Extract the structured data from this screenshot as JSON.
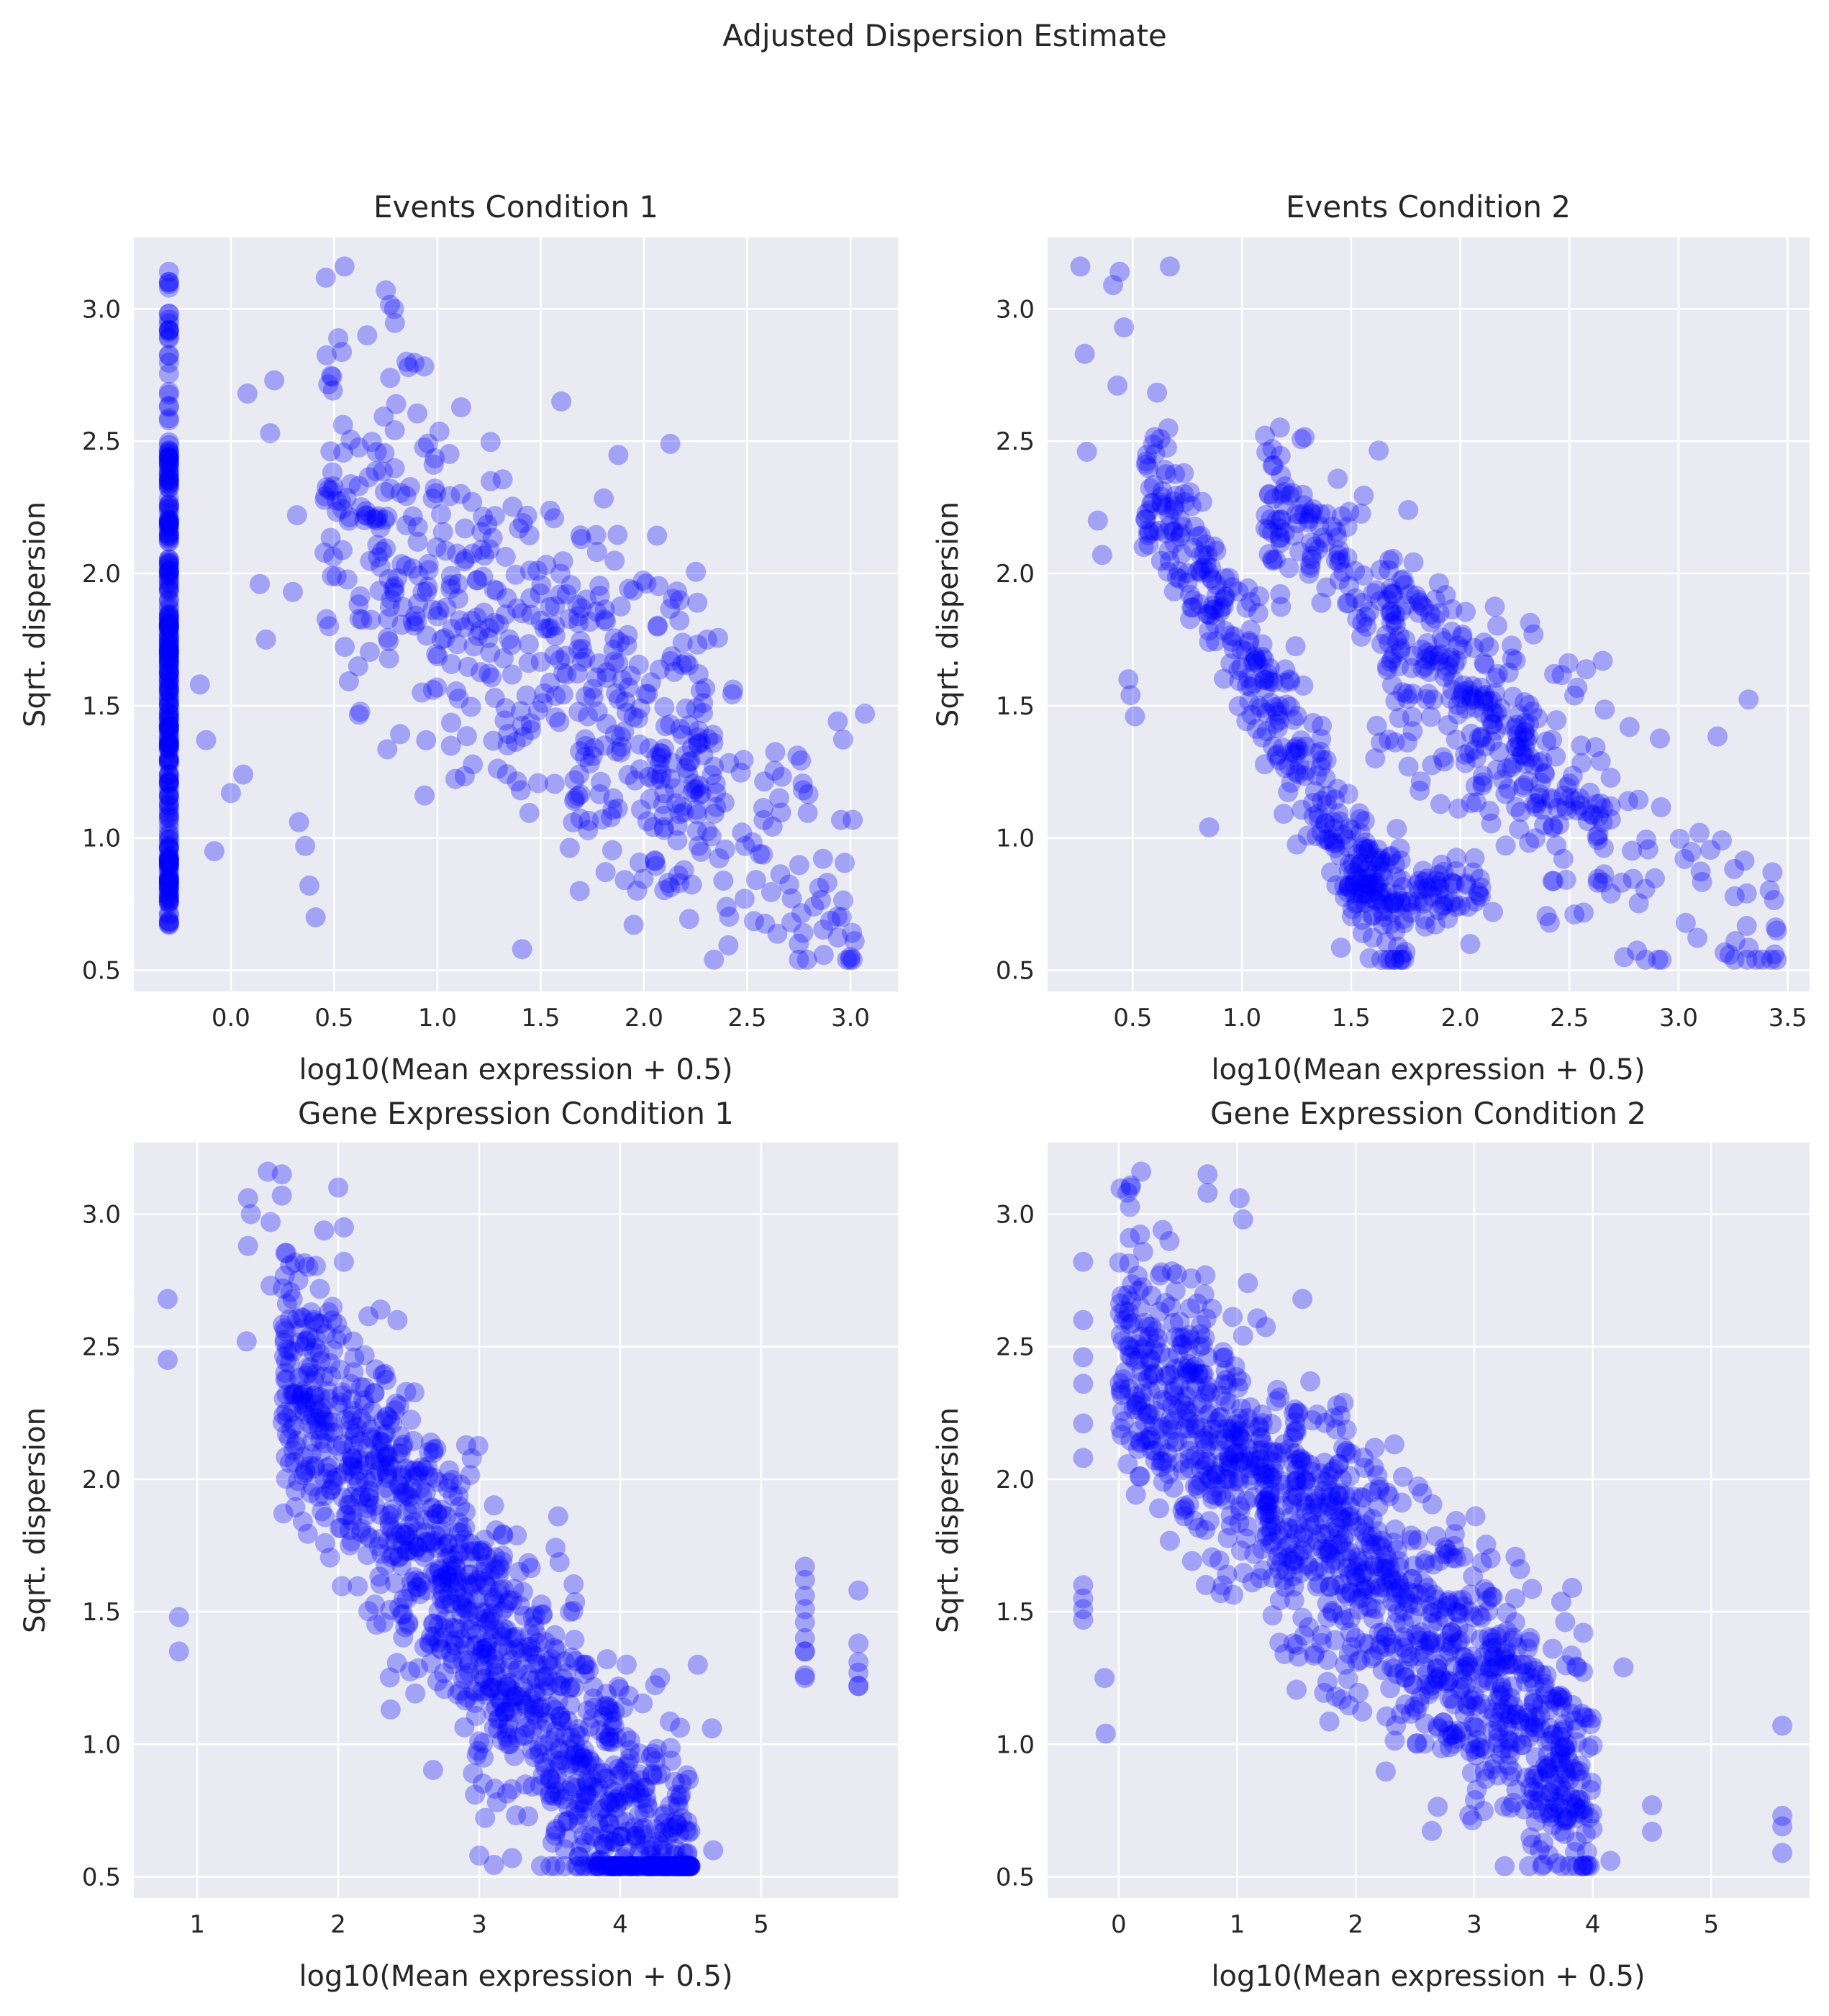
{
  "figure_title": "Adjusted Dispersion Estimate",
  "colors": {
    "points": "#0000ff",
    "panel_background": "#eaeaf2",
    "grid": "#ffffff"
  },
  "chart_data": [
    {
      "type": "scatter",
      "title": "Events Condition 1",
      "xlabel": "log10(Mean expression + 0.5)",
      "ylabel": "Sqrt. dispersion",
      "xlim": [
        -0.47,
        3.23
      ],
      "ylim": [
        0.42,
        3.27
      ],
      "xticks": [
        "0.0",
        "0.5",
        "1.0",
        "1.5",
        "2.0",
        "2.5",
        "3.0"
      ],
      "yticks": [
        "0.5",
        "1.0",
        "1.5",
        "2.0",
        "2.5",
        "3.0"
      ],
      "grid": true,
      "seed": 11,
      "clusters": [
        {
          "n": 260,
          "x": [
            -0.3,
            -0.3
          ],
          "y": [
            0.67,
            2.47
          ],
          "mode": "strip"
        },
        {
          "n": 34,
          "x": [
            -0.3,
            -0.3
          ],
          "y": [
            2.3,
            3.17
          ],
          "mode": "strip"
        },
        {
          "n": 440,
          "x": [
            0.45,
            2.35
          ],
          "slope": -0.58,
          "y0": 2.55,
          "spread": 0.34,
          "mode": "band"
        },
        {
          "n": 130,
          "x": [
            1.6,
            3.05
          ],
          "slope": -0.6,
          "y0": 2.6,
          "spread": 0.3,
          "mode": "band"
        }
      ],
      "points": [
        [
          -0.15,
          1.58
        ],
        [
          -0.12,
          1.37
        ],
        [
          -0.08,
          0.95
        ],
        [
          0.0,
          1.17
        ],
        [
          0.06,
          1.24
        ],
        [
          0.08,
          2.68
        ],
        [
          0.14,
          1.96
        ],
        [
          0.17,
          1.75
        ],
        [
          0.19,
          2.53
        ],
        [
          0.21,
          2.73
        ],
        [
          0.3,
          1.93
        ],
        [
          0.32,
          2.22
        ],
        [
          0.33,
          1.06
        ],
        [
          0.36,
          0.97
        ],
        [
          0.38,
          0.82
        ],
        [
          0.41,
          0.7
        ],
        [
          0.55,
          3.16
        ],
        [
          0.66,
          2.9
        ],
        [
          0.75,
          3.07
        ],
        [
          0.79,
          3.0
        ],
        [
          0.8,
          2.64
        ],
        [
          0.86,
          2.78
        ],
        [
          1.41,
          0.58
        ],
        [
          1.6,
          2.65
        ],
        [
          2.75,
          0.6
        ],
        [
          3.0,
          0.55
        ],
        [
          3.02,
          0.61
        ],
        [
          3.07,
          1.47
        ]
      ]
    },
    {
      "type": "scatter",
      "title": "Events Condition 2",
      "xlabel": "log10(Mean expression + 0.5)",
      "ylabel": "Sqrt. dispersion",
      "xlim": [
        0.11,
        3.6
      ],
      "ylim": [
        0.42,
        3.27
      ],
      "xticks": [
        "0.5",
        "1.0",
        "1.5",
        "2.0",
        "2.5",
        "3.0",
        "3.5"
      ],
      "yticks": [
        "0.5",
        "1.0",
        "1.5",
        "2.0",
        "2.5",
        "3.0"
      ],
      "grid": true,
      "seed": 23,
      "clusters": [
        {
          "n": 330,
          "x": [
            0.55,
            1.75
          ],
          "slope": -1.55,
          "y0": 3.25,
          "spread": 0.14,
          "mode": "band"
        },
        {
          "n": 90,
          "x": [
            1.5,
            2.1
          ],
          "slope": 0.0,
          "y0": 0.8,
          "spread": 0.07,
          "mode": "band"
        },
        {
          "n": 300,
          "x": [
            1.1,
            2.7
          ],
          "slope": -0.82,
          "y0": 3.2,
          "spread": 0.14,
          "mode": "band"
        },
        {
          "n": 150,
          "x": [
            1.6,
            3.45
          ],
          "slope": -0.62,
          "y0": 2.7,
          "spread": 0.3,
          "mode": "band"
        }
      ],
      "points": [
        [
          0.26,
          3.16
        ],
        [
          0.28,
          2.83
        ],
        [
          0.29,
          2.46
        ],
        [
          0.34,
          2.2
        ],
        [
          0.36,
          2.07
        ],
        [
          0.41,
          3.09
        ],
        [
          0.43,
          2.71
        ],
        [
          0.44,
          3.14
        ],
        [
          0.46,
          2.93
        ],
        [
          0.48,
          1.6
        ],
        [
          0.49,
          1.54
        ],
        [
          0.51,
          1.46
        ],
        [
          0.55,
          2.1
        ],
        [
          0.67,
          3.16
        ],
        [
          0.85,
          1.04
        ],
        [
          2.41,
          0.68
        ],
        [
          3.43,
          0.87
        ],
        [
          3.44,
          0.56
        ],
        [
          3.45,
          0.65
        ]
      ]
    },
    {
      "type": "scatter",
      "title": "Gene Expression Condition 1",
      "xlabel": "log10(Mean expression + 0.5)",
      "ylabel": "Sqrt. dispersion",
      "xlim": [
        0.55,
        5.97
      ],
      "ylim": [
        0.42,
        3.27
      ],
      "xticks": [
        "1",
        "2",
        "3",
        "4",
        "5"
      ],
      "yticks": [
        "0.5",
        "1.0",
        "1.5",
        "2.0",
        "2.5",
        "3.0"
      ],
      "grid": true,
      "seed": 37,
      "clusters": [
        {
          "n": 1150,
          "x": [
            1.6,
            4.5
          ],
          "slope": -0.69,
          "y0": 3.52,
          "spread": 0.26,
          "mode": "band"
        }
      ],
      "points": [
        [
          0.79,
          2.68
        ],
        [
          0.79,
          2.45
        ],
        [
          0.87,
          1.48
        ],
        [
          0.87,
          1.35
        ],
        [
          1.35,
          2.52
        ],
        [
          1.36,
          3.06
        ],
        [
          1.36,
          2.88
        ],
        [
          1.38,
          3.0
        ],
        [
          1.5,
          3.16
        ],
        [
          1.52,
          2.73
        ],
        [
          1.52,
          2.97
        ],
        [
          1.6,
          3.15
        ],
        [
          1.6,
          3.07
        ],
        [
          1.77,
          2.52
        ],
        [
          1.96,
          2.65
        ],
        [
          2.0,
          3.1
        ],
        [
          2.04,
          2.95
        ],
        [
          2.04,
          2.82
        ],
        [
          2.3,
          2.64
        ],
        [
          2.42,
          2.6
        ],
        [
          3.0,
          0.58
        ],
        [
          4.22,
          0.55
        ],
        [
          4.55,
          1.3
        ],
        [
          4.66,
          0.6
        ],
        [
          4.65,
          1.06
        ],
        [
          5.31,
          1.67
        ],
        [
          5.31,
          1.62
        ],
        [
          5.31,
          1.56
        ],
        [
          5.31,
          1.51
        ],
        [
          5.31,
          1.46
        ],
        [
          5.31,
          1.4
        ],
        [
          5.31,
          1.35
        ],
        [
          5.31,
          1.35
        ],
        [
          5.31,
          1.26
        ],
        [
          5.31,
          1.25
        ],
        [
          5.69,
          1.58
        ],
        [
          5.69,
          1.38
        ],
        [
          5.69,
          1.31
        ],
        [
          5.69,
          1.27
        ],
        [
          5.69,
          1.22
        ],
        [
          5.69,
          1.22
        ]
      ]
    },
    {
      "type": "scatter",
      "title": "Gene Expression Condition 2",
      "xlabel": "log10(Mean expression + 0.5)",
      "ylabel": "Sqrt. dispersion",
      "xlim": [
        -0.6,
        5.83
      ],
      "ylim": [
        0.42,
        3.27
      ],
      "xticks": [
        "0",
        "1",
        "2",
        "3",
        "4",
        "5"
      ],
      "yticks": [
        "0.5",
        "1.0",
        "1.5",
        "2.0",
        "2.5",
        "3.0"
      ],
      "grid": true,
      "seed": 53,
      "clusters": [
        {
          "n": 1180,
          "x": [
            0.0,
            4.0
          ],
          "slope": -0.42,
          "y0": 2.5,
          "spread": 0.25,
          "mode": "band"
        }
      ],
      "points": [
        [
          -0.3,
          2.82
        ],
        [
          -0.3,
          2.6
        ],
        [
          -0.3,
          2.46
        ],
        [
          -0.3,
          2.36
        ],
        [
          -0.3,
          2.21
        ],
        [
          -0.3,
          2.08
        ],
        [
          -0.3,
          1.6
        ],
        [
          -0.3,
          1.55
        ],
        [
          -0.3,
          1.51
        ],
        [
          -0.3,
          1.47
        ],
        [
          -0.12,
          1.25
        ],
        [
          -0.11,
          1.04
        ],
        [
          0.1,
          3.1
        ],
        [
          0.19,
          3.16
        ],
        [
          0.37,
          2.94
        ],
        [
          0.36,
          2.78
        ],
        [
          0.44,
          2.65
        ],
        [
          0.75,
          3.15
        ],
        [
          0.75,
          3.08
        ],
        [
          1.02,
          3.06
        ],
        [
          1.05,
          2.98
        ],
        [
          1.09,
          2.74
        ],
        [
          1.55,
          2.68
        ],
        [
          4.15,
          0.56
        ],
        [
          4.26,
          1.29
        ],
        [
          4.5,
          0.77
        ],
        [
          4.5,
          0.67
        ],
        [
          5.6,
          1.07
        ],
        [
          5.6,
          0.73
        ],
        [
          5.6,
          0.69
        ],
        [
          5.6,
          0.59
        ]
      ]
    }
  ]
}
